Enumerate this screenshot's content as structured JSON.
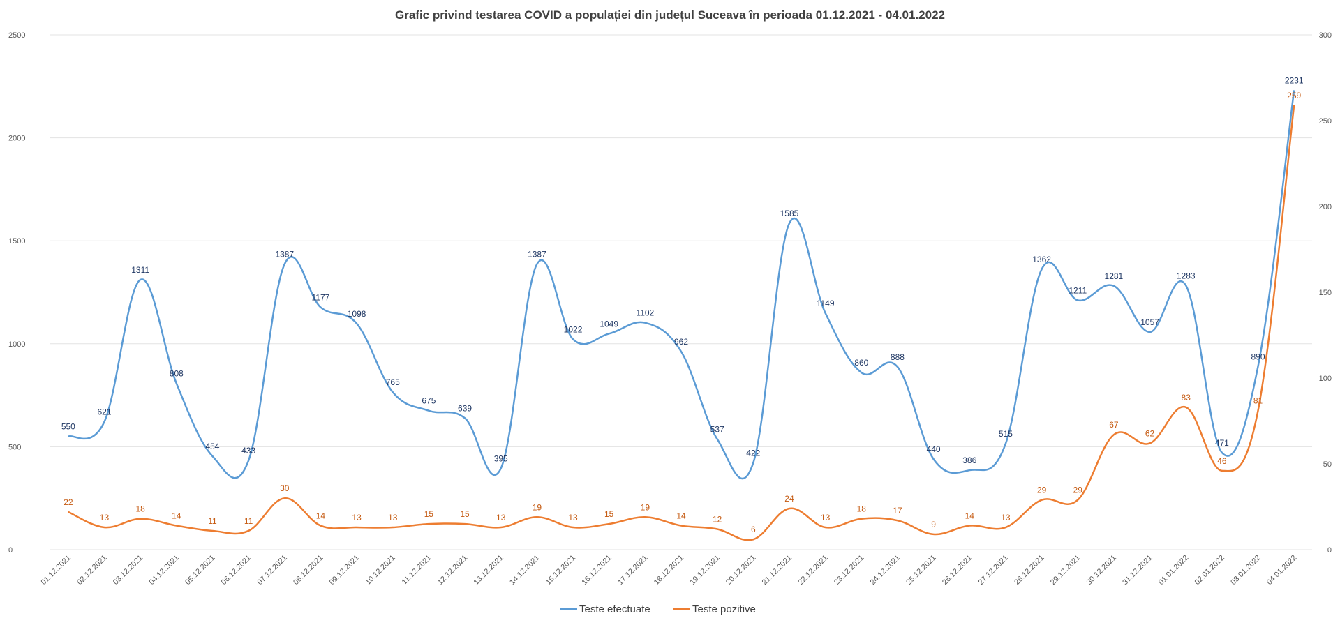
{
  "chart_data": {
    "type": "line",
    "title": "Grafic privind testarea COVID a populației din județul Suceava în perioada 01.12.2021  - 04.01.2022",
    "categories": [
      "01.12.2021",
      "02.12.2021",
      "03.12.2021",
      "04.12.2021",
      "05.12.2021",
      "06.12.2021",
      "07.12.2021",
      "08.12.2021",
      "09.12.2021",
      "10.12.2021",
      "11.12.2021",
      "12.12.2021",
      "13.12.2021",
      "14.12.2021",
      "15.12.2021",
      "16.12.2021",
      "17.12.2021",
      "18.12.2021",
      "19.12.2021",
      "20.12.2021",
      "21.12.2021",
      "22.12.2021",
      "23.12.2021",
      "24.12.2021",
      "25.12.2021",
      "26.12.2021",
      "27.12.2021",
      "28.12.2021",
      "29.12.2021",
      "30.12.2021",
      "31.12.2021",
      "01.01.2022",
      "02.01.2022",
      "03.01.2022",
      "04.01.2022"
    ],
    "series": [
      {
        "name": "Teste efectuate",
        "axis": "left",
        "color": "#5b9bd5",
        "label_color": "#203864",
        "values": [
          550,
          621,
          1311,
          808,
          454,
          433,
          1387,
          1177,
          1098,
          765,
          675,
          639,
          395,
          1387,
          1022,
          1049,
          1102,
          962,
          537,
          422,
          1585,
          1149,
          860,
          888,
          440,
          386,
          515,
          1362,
          1211,
          1281,
          1057,
          1283,
          471,
          890,
          2231
        ]
      },
      {
        "name": "Teste pozitive",
        "axis": "right",
        "color": "#ed7d31",
        "label_color": "#c55a11",
        "values": [
          22,
          13,
          18,
          14,
          11,
          11,
          30,
          14,
          13,
          13,
          15,
          15,
          13,
          19,
          13,
          15,
          19,
          14,
          12,
          6,
          24,
          13,
          18,
          17,
          9,
          14,
          13,
          29,
          29,
          67,
          62,
          83,
          46,
          81,
          259
        ]
      }
    ],
    "y_left": {
      "min": 0,
      "max": 2500,
      "ticks": [
        "0",
        "500",
        "1000",
        "1500",
        "2000",
        "2500"
      ]
    },
    "y_right": {
      "min": 0,
      "max": 300,
      "ticks": [
        "0",
        "50",
        "100",
        "150",
        "200",
        "250",
        "300"
      ]
    },
    "grid": true,
    "legend_position": "bottom"
  },
  "legend": {
    "items": [
      {
        "label": "Teste efectuate",
        "color": "#5b9bd5"
      },
      {
        "label": "Teste pozitive",
        "color": "#ed7d31"
      }
    ]
  }
}
